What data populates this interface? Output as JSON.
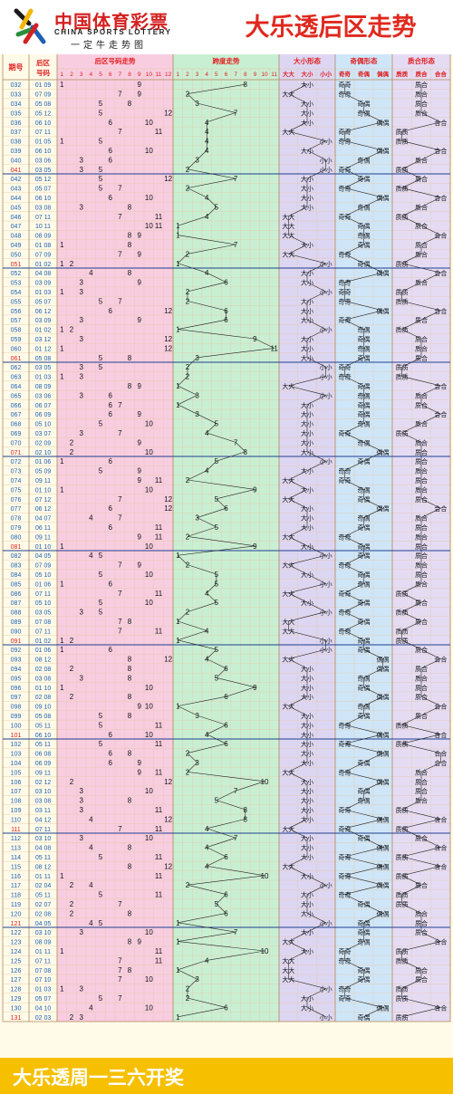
{
  "header": {
    "logo_cn": "中国体育彩票",
    "logo_en": "CHINA SPORTS LOTTERY",
    "logo_slogan": "一定牛走势图",
    "title": "大乐透后区走势"
  },
  "footer": {
    "text": "大乐透周一三六开奖"
  },
  "colors": {
    "red": "#e02020",
    "blue": "#1f5fb4",
    "pink_bg": "#f8cde0",
    "green_bg": "#c9efd3",
    "size_bg": "#ddd6f2",
    "parity_bg": "#cfe6f8",
    "prime_bg": "#e5dcf4",
    "grid": "#e4c8a8"
  },
  "chart_data": {
    "type": "table",
    "columns": {
      "issue": "期号",
      "back": [
        "后区",
        "号码"
      ],
      "trend": "后区号码走势",
      "span": "跨度走势",
      "size": "大小形态",
      "parity": "奇偶形态",
      "prime": "质合形态"
    },
    "trend_ticks": [
      "1",
      "2",
      "3",
      "4",
      "5",
      "6",
      "7",
      "8",
      "9",
      "10",
      "11",
      "12"
    ],
    "span_ticks": [
      "1",
      "2",
      "3",
      "4",
      "5",
      "6",
      "7",
      "8",
      "9",
      "10",
      "11"
    ],
    "size_ticks": [
      "大大",
      "大小",
      "小小"
    ],
    "parity_ticks": [
      "奇奇",
      "奇偶",
      "偶偶"
    ],
    "prime_ticks": [
      "质质",
      "质合",
      "合合"
    ],
    "rows": [
      {
        "issue": "032",
        "nums": [
          1,
          9
        ]
      },
      {
        "issue": "033",
        "nums": [
          7,
          9
        ]
      },
      {
        "issue": "034",
        "nums": [
          5,
          8
        ]
      },
      {
        "issue": "035",
        "nums": [
          5,
          12
        ]
      },
      {
        "issue": "036",
        "nums": [
          6,
          10
        ]
      },
      {
        "issue": "037",
        "nums": [
          7,
          11
        ]
      },
      {
        "issue": "038",
        "nums": [
          1,
          5
        ]
      },
      {
        "issue": "039",
        "nums": [
          6,
          10
        ]
      },
      {
        "issue": "040",
        "nums": [
          3,
          6
        ]
      },
      {
        "issue": "041",
        "nums": [
          3,
          5
        ]
      },
      {
        "issue": "042",
        "nums": [
          5,
          12
        ]
      },
      {
        "issue": "043",
        "nums": [
          5,
          7
        ]
      },
      {
        "issue": "044",
        "nums": [
          6,
          10
        ]
      },
      {
        "issue": "045",
        "nums": [
          3,
          8
        ]
      },
      {
        "issue": "046",
        "nums": [
          7,
          11
        ]
      },
      {
        "issue": "047",
        "nums": [
          10,
          11
        ]
      },
      {
        "issue": "048",
        "nums": [
          8,
          9
        ]
      },
      {
        "issue": "049",
        "nums": [
          1,
          8
        ]
      },
      {
        "issue": "050",
        "nums": [
          7,
          9
        ]
      },
      {
        "issue": "051",
        "nums": [
          1,
          2
        ]
      },
      {
        "issue": "052",
        "nums": [
          4,
          8
        ]
      },
      {
        "issue": "053",
        "nums": [
          3,
          9
        ]
      },
      {
        "issue": "054",
        "nums": [
          1,
          3
        ]
      },
      {
        "issue": "055",
        "nums": [
          5,
          7
        ]
      },
      {
        "issue": "056",
        "nums": [
          6,
          12
        ]
      },
      {
        "issue": "057",
        "nums": [
          3,
          9
        ]
      },
      {
        "issue": "058",
        "nums": [
          1,
          2
        ]
      },
      {
        "issue": "059",
        "nums": [
          3,
          12
        ]
      },
      {
        "issue": "060",
        "nums": [
          1,
          12
        ]
      },
      {
        "issue": "061",
        "nums": [
          5,
          8
        ]
      },
      {
        "issue": "062",
        "nums": [
          3,
          5
        ]
      },
      {
        "issue": "063",
        "nums": [
          1,
          3
        ]
      },
      {
        "issue": "064",
        "nums": [
          8,
          9
        ]
      },
      {
        "issue": "065",
        "nums": [
          3,
          6
        ]
      },
      {
        "issue": "066",
        "nums": [
          6,
          7
        ]
      },
      {
        "issue": "067",
        "nums": [
          6,
          9
        ]
      },
      {
        "issue": "068",
        "nums": [
          5,
          10
        ]
      },
      {
        "issue": "069",
        "nums": [
          3,
          7
        ]
      },
      {
        "issue": "070",
        "nums": [
          2,
          9
        ]
      },
      {
        "issue": "071",
        "nums": [
          2,
          10
        ]
      },
      {
        "issue": "072",
        "nums": [
          1,
          6
        ]
      },
      {
        "issue": "073",
        "nums": [
          5,
          9
        ]
      },
      {
        "issue": "074",
        "nums": [
          9,
          11
        ]
      },
      {
        "issue": "075",
        "nums": [
          1,
          10
        ]
      },
      {
        "issue": "076",
        "nums": [
          7,
          12
        ]
      },
      {
        "issue": "077",
        "nums": [
          6,
          12
        ]
      },
      {
        "issue": "078",
        "nums": [
          4,
          7
        ]
      },
      {
        "issue": "079",
        "nums": [
          6,
          11
        ]
      },
      {
        "issue": "080",
        "nums": [
          9,
          11
        ]
      },
      {
        "issue": "081",
        "nums": [
          1,
          10
        ]
      },
      {
        "issue": "082",
        "nums": [
          4,
          5
        ]
      },
      {
        "issue": "083",
        "nums": [
          7,
          9
        ]
      },
      {
        "issue": "084",
        "nums": [
          5,
          10
        ]
      },
      {
        "issue": "085",
        "nums": [
          1,
          6
        ]
      },
      {
        "issue": "086",
        "nums": [
          7,
          11
        ]
      },
      {
        "issue": "087",
        "nums": [
          5,
          10
        ]
      },
      {
        "issue": "088",
        "nums": [
          3,
          5
        ]
      },
      {
        "issue": "089",
        "nums": [
          7,
          8
        ]
      },
      {
        "issue": "090",
        "nums": [
          7,
          11
        ]
      },
      {
        "issue": "091",
        "nums": [
          1,
          2
        ]
      },
      {
        "issue": "092",
        "nums": [
          1,
          6
        ]
      },
      {
        "issue": "093",
        "nums": [
          8,
          12
        ]
      },
      {
        "issue": "094",
        "nums": [
          2,
          8
        ]
      },
      {
        "issue": "095",
        "nums": [
          3,
          8
        ]
      },
      {
        "issue": "096",
        "nums": [
          1,
          10
        ]
      },
      {
        "issue": "097",
        "nums": [
          2,
          8
        ]
      },
      {
        "issue": "098",
        "nums": [
          9,
          10
        ]
      },
      {
        "issue": "099",
        "nums": [
          5,
          8
        ]
      },
      {
        "issue": "100",
        "nums": [
          5,
          11
        ]
      },
      {
        "issue": "101",
        "nums": [
          6,
          10
        ]
      },
      {
        "issue": "102",
        "nums": [
          5,
          11
        ]
      },
      {
        "issue": "103",
        "nums": [
          6,
          8
        ]
      },
      {
        "issue": "104",
        "nums": [
          6,
          9
        ]
      },
      {
        "issue": "105",
        "nums": [
          9,
          11
        ]
      },
      {
        "issue": "106",
        "nums": [
          2,
          12
        ]
      },
      {
        "issue": "107",
        "nums": [
          3,
          10
        ]
      },
      {
        "issue": "108",
        "nums": [
          3,
          8
        ]
      },
      {
        "issue": "109",
        "nums": [
          3,
          11
        ]
      },
      {
        "issue": "110",
        "nums": [
          4,
          12
        ]
      },
      {
        "issue": "111",
        "nums": [
          7,
          11
        ]
      },
      {
        "issue": "112",
        "nums": [
          3,
          10
        ]
      },
      {
        "issue": "113",
        "nums": [
          4,
          8
        ]
      },
      {
        "issue": "114",
        "nums": [
          5,
          11
        ]
      },
      {
        "issue": "115",
        "nums": [
          8,
          12
        ]
      },
      {
        "issue": "116",
        "nums": [
          1,
          11
        ]
      },
      {
        "issue": "117",
        "nums": [
          2,
          4
        ]
      },
      {
        "issue": "118",
        "nums": [
          5,
          11
        ]
      },
      {
        "issue": "119",
        "nums": [
          2,
          7
        ]
      },
      {
        "issue": "120",
        "nums": [
          2,
          8
        ]
      },
      {
        "issue": "121",
        "nums": [
          4,
          5
        ]
      },
      {
        "issue": "122",
        "nums": [
          3,
          10
        ]
      },
      {
        "issue": "123",
        "nums": [
          8,
          9
        ]
      },
      {
        "issue": "124",
        "nums": [
          1,
          11
        ]
      },
      {
        "issue": "125",
        "nums": [
          7,
          11
        ]
      },
      {
        "issue": "126",
        "nums": [
          7,
          8
        ]
      },
      {
        "issue": "127",
        "nums": [
          7,
          10
        ]
      },
      {
        "issue": "128",
        "nums": [
          1,
          3
        ]
      },
      {
        "issue": "129",
        "nums": [
          5,
          7
        ]
      },
      {
        "issue": "130",
        "nums": [
          4,
          10
        ]
      },
      {
        "issue": "131",
        "nums": [
          2,
          3
        ]
      }
    ]
  }
}
